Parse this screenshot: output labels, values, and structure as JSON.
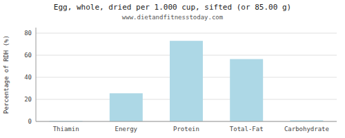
{
  "chart_data": {
    "type": "bar",
    "title": "Egg, whole, dried per 1.000 cup, sifted (or 85.00 g)",
    "subtitle": "www.dietandfitnesstoday.com",
    "categories": [
      "Thiamin",
      "Energy",
      "Protein",
      "Total-Fat",
      "Carbohydrate"
    ],
    "values": [
      0.5,
      25.5,
      73.0,
      56.5,
      1.0
    ],
    "color": "#add8e6",
    "ylabel": "Percentage of RDH (%)",
    "ylim": [
      0,
      85
    ],
    "yticks": [
      0,
      20,
      40,
      60,
      80
    ],
    "grid": true
  }
}
